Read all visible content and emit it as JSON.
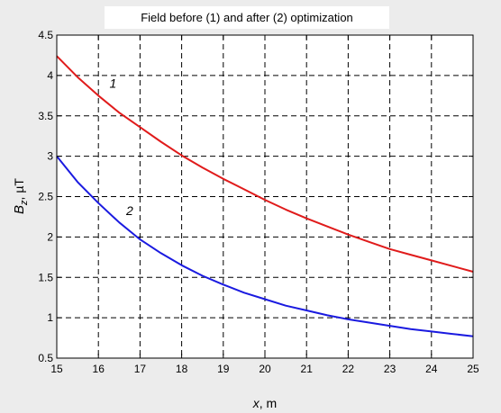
{
  "chart_data": {
    "type": "line",
    "title": "Field before (1) and after (2) optimization",
    "xlabel_var": "x",
    "xlabel_unit": ", m",
    "ylabel_var": "B",
    "ylabel_sub": "z",
    "ylabel_unit": ", µT",
    "xlim": [
      15,
      25
    ],
    "ylim": [
      0.5,
      4.5
    ],
    "x_ticks": [
      15,
      16,
      17,
      18,
      19,
      20,
      21,
      22,
      23,
      24,
      25
    ],
    "y_ticks": [
      0.5,
      1,
      1.5,
      2,
      2.5,
      3,
      3.5,
      4,
      4.5
    ],
    "grid": true,
    "series": [
      {
        "name": "1",
        "color": "#e01b1b",
        "x": [
          15,
          15.5,
          16,
          16.5,
          17,
          17.5,
          18,
          18.5,
          19,
          19.5,
          20,
          20.5,
          21,
          21.5,
          22,
          22.5,
          23,
          23.5,
          24,
          24.5,
          25
        ],
        "y": [
          4.24,
          3.98,
          3.75,
          3.54,
          3.36,
          3.18,
          3.01,
          2.86,
          2.72,
          2.59,
          2.46,
          2.34,
          2.23,
          2.13,
          2.03,
          1.94,
          1.85,
          1.78,
          1.71,
          1.64,
          1.57
        ]
      },
      {
        "name": "2",
        "color": "#1a1ae0",
        "x": [
          15,
          15.5,
          16,
          16.5,
          17,
          17.5,
          18,
          18.5,
          19,
          19.5,
          20,
          20.5,
          21,
          21.5,
          22,
          22.5,
          23,
          23.5,
          24,
          24.5,
          25
        ],
        "y": [
          3.0,
          2.68,
          2.42,
          2.18,
          1.97,
          1.8,
          1.65,
          1.52,
          1.41,
          1.31,
          1.23,
          1.15,
          1.09,
          1.03,
          0.98,
          0.94,
          0.9,
          0.86,
          0.83,
          0.8,
          0.77
        ]
      }
    ],
    "annotations": [
      {
        "text": "1",
        "x": 16.35,
        "y": 3.85
      },
      {
        "text": "2",
        "x": 16.75,
        "y": 2.27
      }
    ]
  }
}
